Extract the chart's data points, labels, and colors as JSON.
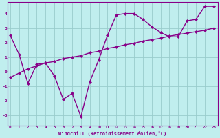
{
  "xlabel": "Windchill (Refroidissement éolien,°C)",
  "bg_color": "#c0eeee",
  "line_color": "#880088",
  "grid_color": "#99cccc",
  "x_ticks": [
    0,
    1,
    2,
    3,
    4,
    5,
    6,
    7,
    8,
    9,
    10,
    11,
    12,
    13,
    14,
    15,
    16,
    17,
    18,
    19,
    20,
    21,
    22,
    23
  ],
  "y_ticks": [
    -3,
    -2,
    -1,
    0,
    1,
    2,
    3,
    4
  ],
  "xlim": [
    -0.3,
    23.5
  ],
  "ylim": [
    -3.7,
    4.8
  ],
  "line1_x": [
    0,
    1,
    2,
    3,
    4,
    5,
    6,
    7,
    8,
    9,
    10,
    11,
    12,
    13,
    14,
    15,
    16,
    17,
    18,
    19,
    20,
    21,
    22,
    23
  ],
  "line1_y": [
    2.5,
    1.2,
    -0.8,
    0.5,
    0.6,
    -0.3,
    -1.9,
    -1.5,
    -3.1,
    -0.7,
    0.8,
    2.5,
    3.9,
    4.0,
    4.0,
    3.6,
    3.1,
    2.7,
    2.4,
    2.4,
    3.5,
    3.6,
    4.5,
    4.5
  ],
  "line2_x": [
    0,
    1,
    2,
    3,
    4,
    5,
    6,
    7,
    8,
    9,
    10,
    11,
    12,
    13,
    14,
    15,
    16,
    17,
    18,
    19,
    20,
    21,
    22,
    23
  ],
  "line2_y": [
    -0.4,
    -0.1,
    0.2,
    0.4,
    0.6,
    0.7,
    0.9,
    1.0,
    1.1,
    1.3,
    1.4,
    1.6,
    1.7,
    1.85,
    1.95,
    2.1,
    2.2,
    2.3,
    2.45,
    2.55,
    2.65,
    2.75,
    2.85,
    3.0
  ],
  "marker": "D",
  "markersize": 2.5,
  "linewidth": 1.0
}
